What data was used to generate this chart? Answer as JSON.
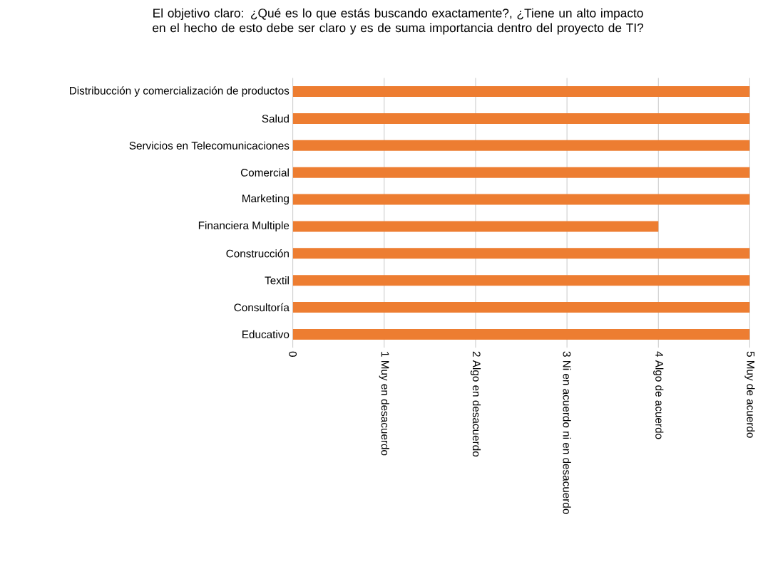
{
  "chart_data": {
    "type": "bar",
    "orientation": "horizontal",
    "title": "El objetivo claro: ¿Qué es lo que estás buscando exactamente?, ¿Tiene un alto impacto en el hecho de esto debe ser claro y es de suma importancia dentro del proyecto de TI?",
    "categories": [
      "Distribucción y comercialización de productos",
      "Salud",
      "Servicios en Telecomunicaciones",
      "Comercial",
      "Marketing",
      "Financiera Multiple",
      "Construcción",
      "Textil",
      "Consultoría",
      "Educativo"
    ],
    "values": [
      5,
      5,
      5,
      5,
      5,
      4,
      5,
      5,
      5,
      5
    ],
    "color": "#ed7d31",
    "xlim": [
      0,
      5
    ],
    "xticks": [
      {
        "value": 0,
        "label": "0"
      },
      {
        "value": 1,
        "label": "1 Muy en desacuerdo"
      },
      {
        "value": 2,
        "label": "2 Algo en desacuerdo"
      },
      {
        "value": 3,
        "label": "3 Ni en acuerdo ni en desacuerdo"
      },
      {
        "value": 4,
        "label": "4 Algo de acuerdo"
      },
      {
        "value": 5,
        "label": "5 Muy de acuerdo"
      }
    ],
    "grid": "x"
  }
}
